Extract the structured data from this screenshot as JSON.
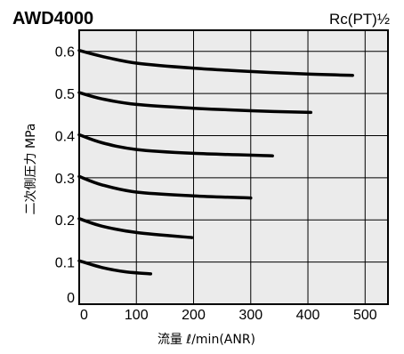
{
  "chart_data": {
    "type": "line",
    "title": "AWD4000",
    "subtitle": "Rc(PT)½",
    "xlabel": "流量 ℓ/min(ANR)",
    "ylabel": "二次側圧力 MPa",
    "xlim": [
      0,
      540
    ],
    "ylim": [
      0,
      0.65
    ],
    "x_ticks": [
      "0",
      "100",
      "200",
      "300",
      "400",
      "500"
    ],
    "y_ticks": [
      "0",
      "0.1",
      "0.2",
      "0.3",
      "0.4",
      "0.5",
      "0.6"
    ],
    "grid": true,
    "background": "#ebebeb",
    "series": [
      {
        "values": [
          [
            0,
            0.602
          ],
          [
            40,
            0.588
          ],
          [
            100,
            0.572
          ],
          [
            200,
            0.56
          ],
          [
            300,
            0.552
          ],
          [
            400,
            0.546
          ],
          [
            478,
            0.543
          ]
        ]
      },
      {
        "values": [
          [
            0,
            0.502
          ],
          [
            40,
            0.487
          ],
          [
            100,
            0.474
          ],
          [
            200,
            0.465
          ],
          [
            300,
            0.459
          ],
          [
            405,
            0.455
          ]
        ]
      },
      {
        "values": [
          [
            0,
            0.402
          ],
          [
            40,
            0.383
          ],
          [
            100,
            0.367
          ],
          [
            200,
            0.358
          ],
          [
            338,
            0.352
          ]
        ]
      },
      {
        "values": [
          [
            0,
            0.303
          ],
          [
            40,
            0.283
          ],
          [
            100,
            0.266
          ],
          [
            200,
            0.257
          ],
          [
            300,
            0.252
          ]
        ]
      },
      {
        "values": [
          [
            0,
            0.203
          ],
          [
            40,
            0.185
          ],
          [
            100,
            0.17
          ],
          [
            197,
            0.158
          ]
        ]
      },
      {
        "values": [
          [
            0,
            0.103
          ],
          [
            40,
            0.087
          ],
          [
            80,
            0.077
          ],
          [
            125,
            0.072
          ]
        ]
      }
    ]
  }
}
